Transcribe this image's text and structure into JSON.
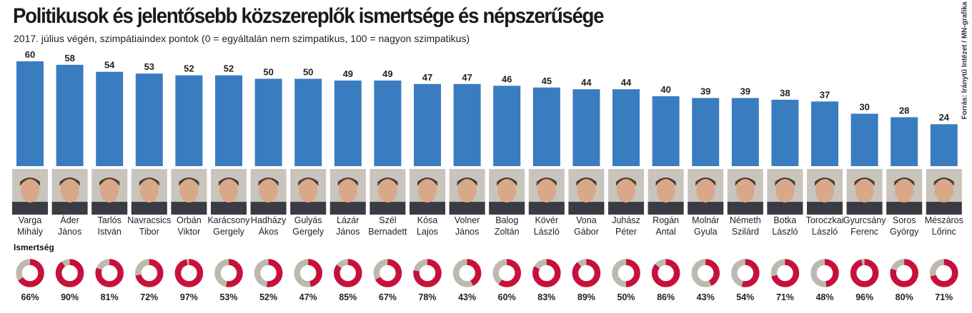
{
  "header": {
    "title": "Politikusok és jelentősebb közszereplők ismertsége és népszerűsége",
    "subtitle": "2017. július végén, szimpátiaindex pontok (0 = egyáltalán nem szimpatikus, 100 = nagyon szimpatikus)",
    "source": "Forrás: Iránytű Intézet / MN-grafika"
  },
  "recognition_label": "Ismertség",
  "colors": {
    "bar": "#3a7cc0",
    "donut_fill": "#c8103a",
    "donut_rest": "#bdb9ae"
  },
  "chart_data": {
    "type": "bar",
    "ylim": [
      0,
      100
    ],
    "categories": [
      [
        "Varga",
        "Mihály"
      ],
      [
        "Áder",
        "János"
      ],
      [
        "Tarlós",
        "István"
      ],
      [
        "Navracsics",
        "Tibor"
      ],
      [
        "Orbán",
        "Viktor"
      ],
      [
        "Karácsony",
        "Gergely"
      ],
      [
        "Hadházy",
        "Ákos"
      ],
      [
        "Gulyás",
        "Gergely"
      ],
      [
        "Lázár",
        "János"
      ],
      [
        "Szél",
        "Bernadett"
      ],
      [
        "Kósa",
        "Lajos"
      ],
      [
        "Volner",
        "János"
      ],
      [
        "Balog",
        "Zoltán"
      ],
      [
        "Kövér",
        "László"
      ],
      [
        "Vona",
        "Gábor"
      ],
      [
        "Juhász",
        "Péter"
      ],
      [
        "Rogán",
        "Antal"
      ],
      [
        "Molnár",
        "Gyula"
      ],
      [
        "Németh",
        "Szilárd"
      ],
      [
        "Botka",
        "László"
      ],
      [
        "Toroczkai",
        "László"
      ],
      [
        "Gyurcsány",
        "Ferenc"
      ],
      [
        "Soros",
        "György"
      ],
      [
        "Mészáros",
        "Lőrinc"
      ]
    ],
    "series": [
      {
        "name": "szimpátiaindex",
        "values": [
          60,
          58,
          54,
          53,
          52,
          52,
          50,
          50,
          49,
          49,
          47,
          47,
          46,
          45,
          44,
          44,
          40,
          39,
          39,
          38,
          37,
          30,
          28,
          24
        ]
      },
      {
        "name": "Ismertség",
        "type": "donut",
        "unit": "%",
        "values": [
          66,
          90,
          81,
          72,
          97,
          53,
          52,
          47,
          85,
          67,
          78,
          43,
          60,
          83,
          89,
          50,
          86,
          43,
          54,
          71,
          48,
          96,
          80,
          71
        ]
      }
    ]
  }
}
